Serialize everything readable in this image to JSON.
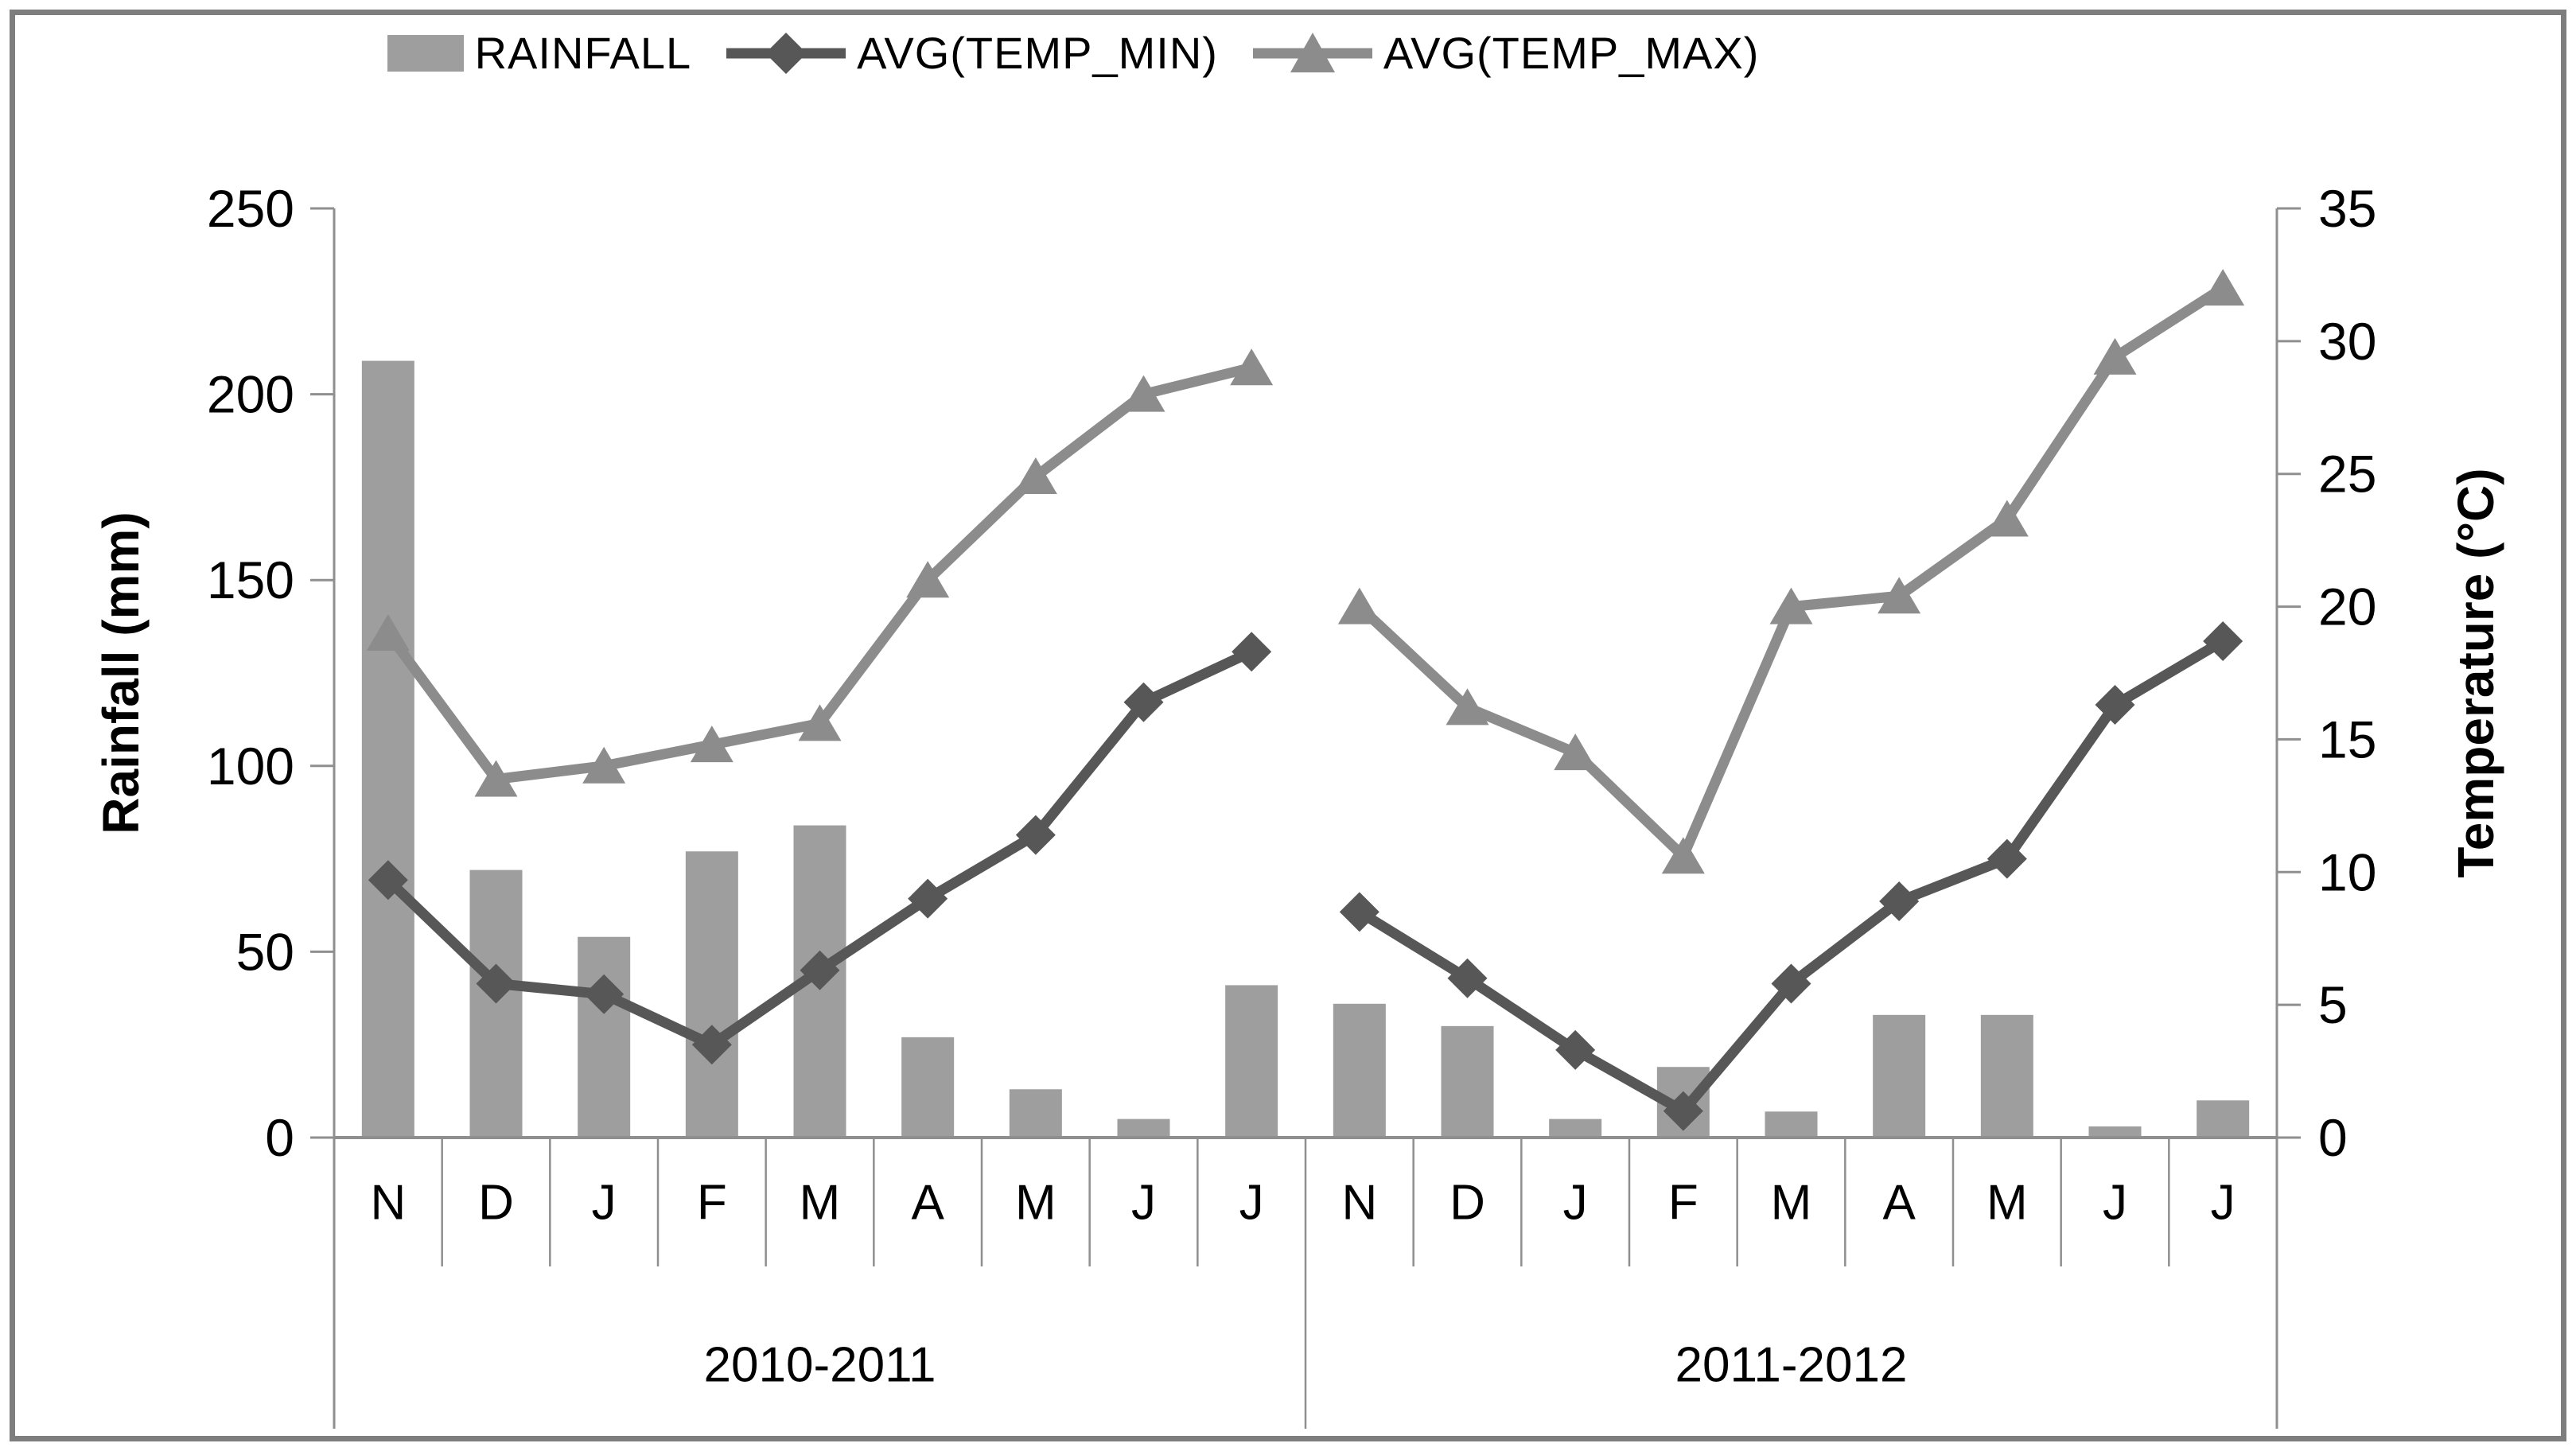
{
  "figure": {
    "background": "#ffffff",
    "border_color": "#7e7e7e"
  },
  "colors": {
    "bar": "#9e9e9e",
    "temp_min": "#575757",
    "temp_max": "#8c8c8c",
    "axis": "#8f8f8f",
    "text": "#000000"
  },
  "legend": {
    "items": [
      {
        "label": "RAINFALL",
        "marker": "bar-swatch"
      },
      {
        "label": "AVG(TEMP_MIN)",
        "marker": "diamond-line"
      },
      {
        "label": "AVG(TEMP_MAX)",
        "marker": "triangle-line"
      }
    ]
  },
  "axes": {
    "left": {
      "title": "Rainfall (mm)"
    },
    "right": {
      "title": "Temperature (°C)"
    }
  },
  "chart_data": {
    "type": "combo-bar-line",
    "categories": [
      "N",
      "D",
      "J",
      "F",
      "M",
      "A",
      "M",
      "J",
      "J",
      "N",
      "D",
      "J",
      "F",
      "M",
      "A",
      "M",
      "J",
      "J"
    ],
    "year_groups": [
      {
        "label": "2010-2011",
        "start": 0,
        "span": 9
      },
      {
        "label": "2011-2012",
        "start": 9,
        "span": 9
      }
    ],
    "left_axis": {
      "label": "Rainfall (mm)",
      "min": 0,
      "max": 250,
      "step": 50
    },
    "right_axis": {
      "label": "Temperature (°C)",
      "min": 0,
      "max": 35,
      "step": 5
    },
    "legend_position": "top",
    "grid": false,
    "series": [
      {
        "name": "RAINFALL",
        "type": "bar",
        "axis": "left",
        "color": "#9e9e9e",
        "values": [
          209,
          72,
          54,
          77,
          84,
          27,
          13,
          5,
          41,
          36,
          30,
          5,
          19,
          7,
          33,
          33,
          3,
          10
        ]
      },
      {
        "name": "AVG(TEMP_MIN)",
        "type": "line",
        "marker": "diamond",
        "axis": "right",
        "color": "#575757",
        "values": [
          9.7,
          5.8,
          5.4,
          3.5,
          6.3,
          9.0,
          11.4,
          16.4,
          18.3,
          8.5,
          6.0,
          3.3,
          1.0,
          5.8,
          8.9,
          10.5,
          16.3,
          18.7
        ]
      },
      {
        "name": "AVG(TEMP_MAX)",
        "type": "line",
        "marker": "triangle",
        "axis": "right",
        "color": "#8c8c8c",
        "values": [
          19.0,
          13.5,
          14.0,
          14.8,
          15.6,
          21.0,
          24.9,
          28.0,
          29.0,
          20.0,
          16.2,
          14.5,
          10.6,
          20.0,
          20.4,
          23.3,
          29.4,
          32.0
        ]
      }
    ]
  }
}
